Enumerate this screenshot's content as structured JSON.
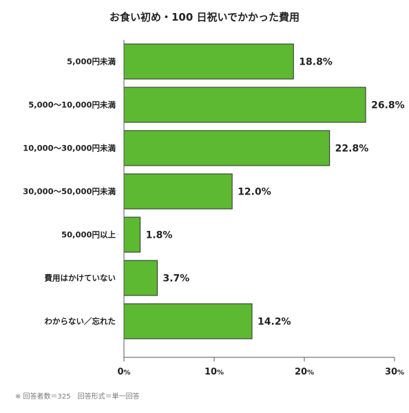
{
  "chart_data": {
    "type": "bar",
    "orientation": "horizontal",
    "title": "お食い初め・100 日祝いでかかった費用",
    "categories": [
      "5,000円未満",
      "5,000〜10,000円未満",
      "10,000〜30,000円未満",
      "30,000〜50,000円未満",
      "50,000円以上",
      "費用はかけていない",
      "わからない／忘れた"
    ],
    "values": [
      18.8,
      26.8,
      22.8,
      12.0,
      1.8,
      3.7,
      14.2
    ],
    "value_labels": [
      "18.8%",
      "26.8%",
      "22.8%",
      "12.0%",
      "1.8%",
      "3.7%",
      "14.2%"
    ],
    "xlim": [
      0,
      30
    ],
    "xticks": [
      {
        "value": 0,
        "num": "0",
        "unit": "%"
      },
      {
        "value": 10,
        "num": "10",
        "unit": "%"
      },
      {
        "value": 20,
        "num": "20",
        "unit": "%"
      },
      {
        "value": 30,
        "num": "30",
        "unit": "%"
      }
    ],
    "bar_color": "#5db832",
    "bar_border_color": "#2c2c2c",
    "axis_color": "#555555",
    "grid": false,
    "legend": "none"
  },
  "footnote": "※ 回答者数＝325　回答形式＝単一回答"
}
